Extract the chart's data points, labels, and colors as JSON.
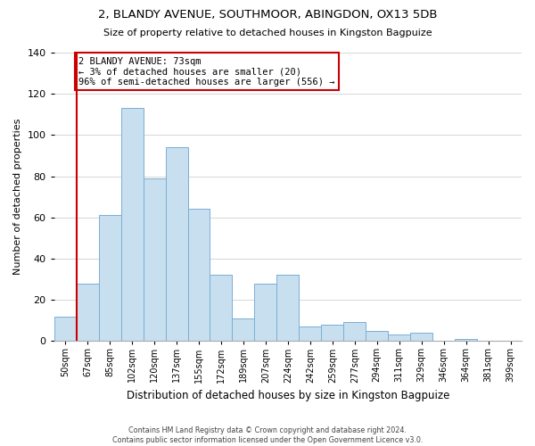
{
  "title": "2, BLANDY AVENUE, SOUTHMOOR, ABINGDON, OX13 5DB",
  "subtitle": "Size of property relative to detached houses in Kingston Bagpuize",
  "xlabel": "Distribution of detached houses by size in Kingston Bagpuize",
  "ylabel": "Number of detached properties",
  "bar_labels": [
    "50sqm",
    "67sqm",
    "85sqm",
    "102sqm",
    "120sqm",
    "137sqm",
    "155sqm",
    "172sqm",
    "189sqm",
    "207sqm",
    "224sqm",
    "242sqm",
    "259sqm",
    "277sqm",
    "294sqm",
    "311sqm",
    "329sqm",
    "346sqm",
    "364sqm",
    "381sqm",
    "399sqm"
  ],
  "bar_values": [
    12,
    28,
    61,
    113,
    79,
    94,
    64,
    32,
    11,
    28,
    32,
    7,
    8,
    9,
    5,
    3,
    4,
    0,
    1,
    0,
    0
  ],
  "bar_color": "#c8dff0",
  "bar_edge_color": "#7bafd4",
  "vline_color": "#cc0000",
  "ylim": [
    0,
    140
  ],
  "yticks": [
    0,
    20,
    40,
    60,
    80,
    100,
    120,
    140
  ],
  "annotation_text_line1": "2 BLANDY AVENUE: 73sqm",
  "annotation_text_line2": "← 3% of detached houses are smaller (20)",
  "annotation_text_line3": "96% of semi-detached houses are larger (556) →",
  "annotation_box_color": "#ffffff",
  "annotation_box_edge": "#cc0000",
  "footer_line1": "Contains HM Land Registry data © Crown copyright and database right 2024.",
  "footer_line2": "Contains public sector information licensed under the Open Government Licence v3.0."
}
